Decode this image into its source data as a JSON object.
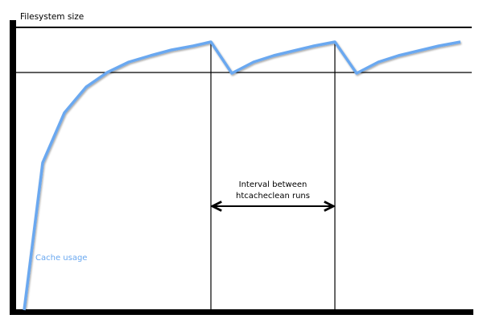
{
  "diagram": {
    "y_axis_label": "Filesystem size",
    "series_label": "Cache usage",
    "interval_label_line1": "Interval between",
    "interval_label_line2": "htcacheclean runs",
    "series_color": "#6aa8f0"
  }
}
